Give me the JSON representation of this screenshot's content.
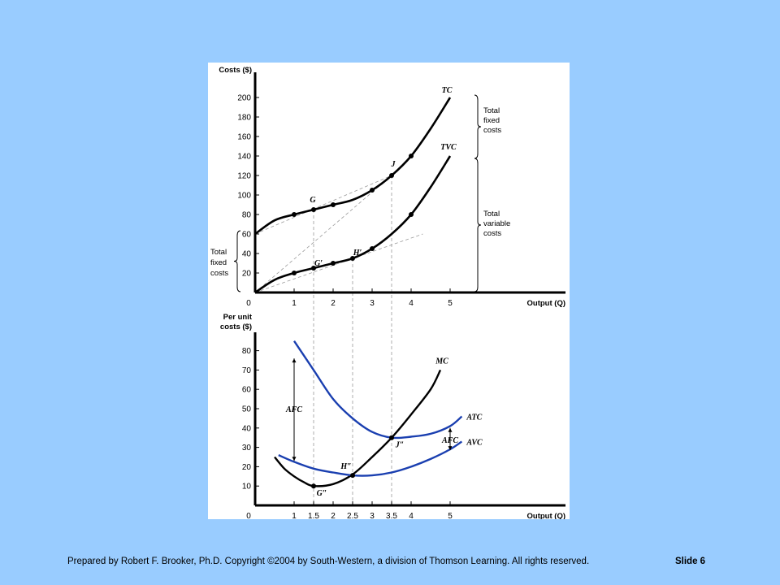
{
  "footer": {
    "credit": "Prepared by Robert F. Brooker, Ph.D.   Copyright ©2004 by South-Western, a division of Thomson Learning.  All rights reserved.",
    "slide": "Slide 6"
  },
  "colors": {
    "black_curve": "#000000",
    "blue_curve": "#1a3fb0",
    "guide": "#9a9a9a",
    "background": "#99ccff"
  },
  "chart_data": [
    {
      "type": "line",
      "ylabel": "Costs ($)",
      "xlabel": "Output (Q)",
      "xlim": [
        0,
        5.5
      ],
      "ylim": [
        0,
        210
      ],
      "x_ticks": [
        "1",
        "2",
        "3",
        "4",
        "5"
      ],
      "y_ticks": [
        "20",
        "40",
        "60",
        "80",
        "100",
        "120",
        "140",
        "160",
        "180",
        "200"
      ],
      "origin_label": "0",
      "series": [
        {
          "name": "TC",
          "x": [
            0,
            0.5,
            1,
            1.5,
            2,
            2.5,
            3,
            3.5,
            4,
            4.5,
            5
          ],
          "y": [
            60,
            74,
            80,
            85,
            90,
            95,
            105,
            120,
            140,
            168,
            200
          ],
          "markers_x": [
            1,
            1.5,
            2,
            3,
            3.5,
            4
          ]
        },
        {
          "name": "TVC",
          "x": [
            0,
            0.5,
            1,
            1.5,
            2,
            2.5,
            3,
            3.5,
            4,
            4.5,
            5
          ],
          "y": [
            0,
            13,
            20,
            25,
            30,
            35,
            45,
            60,
            80,
            108,
            140
          ],
          "markers_x": [
            1,
            1.5,
            2,
            2.5,
            3,
            4
          ]
        }
      ],
      "points": [
        {
          "label": "G",
          "x": 1.5,
          "y": 85
        },
        {
          "label": "J",
          "x": 3.5,
          "y": 120
        },
        {
          "label": "G′",
          "x": 1.5,
          "y": 25
        },
        {
          "label": "H′",
          "x": 2.5,
          "y": 35
        }
      ],
      "annotations": {
        "right_top": [
          "Total",
          "fixed",
          "costs"
        ],
        "right_bottom": [
          "Total",
          "variable",
          "costs"
        ],
        "left": [
          "Total",
          "fixed",
          "costs"
        ]
      }
    },
    {
      "type": "line",
      "ylabel": "Per unit costs ($)",
      "ylabel_lines": [
        "Per unit",
        "costs ($)"
      ],
      "xlabel": "Output (Q)",
      "xlim": [
        0,
        5.5
      ],
      "ylim": [
        0,
        90
      ],
      "x_ticks": [
        "1",
        "1.5",
        "2",
        "2.5",
        "3",
        "3.5",
        "4",
        "5"
      ],
      "y_ticks": [
        "10",
        "20",
        "30",
        "40",
        "50",
        "60",
        "70",
        "80"
      ],
      "origin_label": "0",
      "series": [
        {
          "name": "MC",
          "x": [
            0.5,
            0.75,
            1,
            1.25,
            1.5,
            2,
            2.5,
            3,
            3.5,
            4,
            4.5,
            4.75
          ],
          "y": [
            25,
            19,
            15,
            12,
            10,
            11,
            16,
            25,
            35,
            47,
            60,
            70
          ]
        },
        {
          "name": "ATC",
          "x": [
            1,
            1.5,
            2,
            2.5,
            3,
            3.5,
            4,
            4.5,
            5,
            5.3
          ],
          "y": [
            85,
            70,
            55,
            45,
            38,
            35,
            35.5,
            37,
            41,
            46
          ]
        },
        {
          "name": "AVC",
          "x": [
            0.6,
            1,
            1.5,
            2,
            2.5,
            3,
            3.5,
            4,
            4.5,
            5,
            5.3
          ],
          "y": [
            26,
            22.5,
            19,
            17,
            15.5,
            15.5,
            17,
            20,
            24,
            29,
            33
          ]
        }
      ],
      "points": [
        {
          "label": "G″",
          "x": 1.5,
          "y": 10
        },
        {
          "label": "H″",
          "x": 2.5,
          "y": 15.5
        },
        {
          "label": "J″",
          "x": 3.5,
          "y": 35
        }
      ],
      "annotations": {
        "afc_left": "AFC",
        "afc_right": "AFC"
      }
    }
  ]
}
